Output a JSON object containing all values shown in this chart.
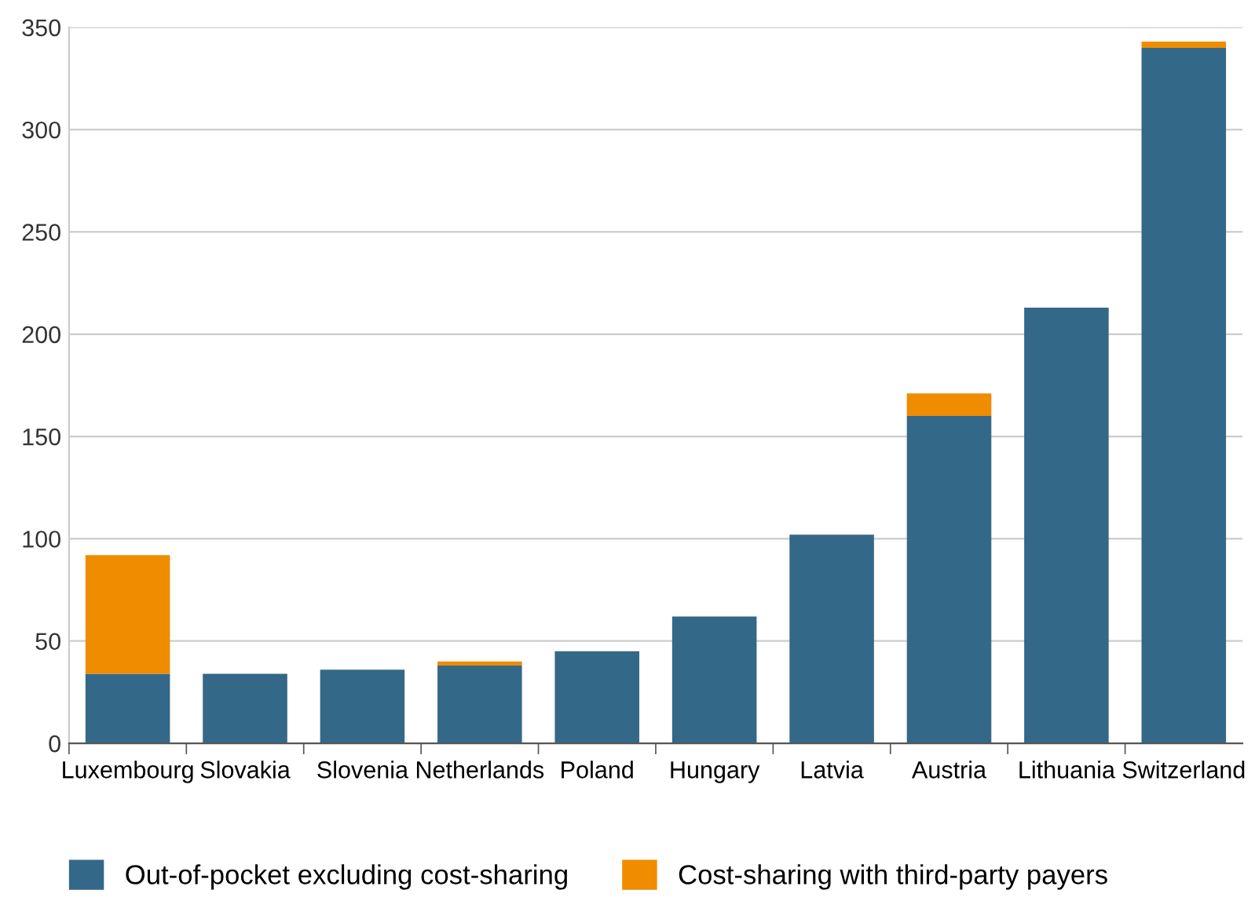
{
  "chart_data": {
    "type": "bar",
    "stacked": true,
    "categories": [
      "Luxembourg",
      "Slovakia",
      "Slovenia",
      "Netherlands",
      "Poland",
      "Hungary",
      "Latvia",
      "Austria",
      "Lithuania",
      "Switzerland"
    ],
    "series": [
      {
        "name": "Out-of-pocket excluding cost-sharing",
        "color": "#346888",
        "values": [
          34,
          34,
          36,
          38,
          45,
          62,
          102,
          160,
          213,
          340
        ]
      },
      {
        "name": "Cost-sharing with third-party payers",
        "color": "#f08c00",
        "values": [
          58,
          null,
          null,
          2,
          null,
          null,
          null,
          11,
          null,
          3
        ]
      }
    ],
    "ylim": [
      0,
      350
    ],
    "yticks": [
      0,
      50,
      100,
      150,
      200,
      250,
      300,
      350
    ],
    "grid": "y",
    "legend": "bottom left"
  }
}
